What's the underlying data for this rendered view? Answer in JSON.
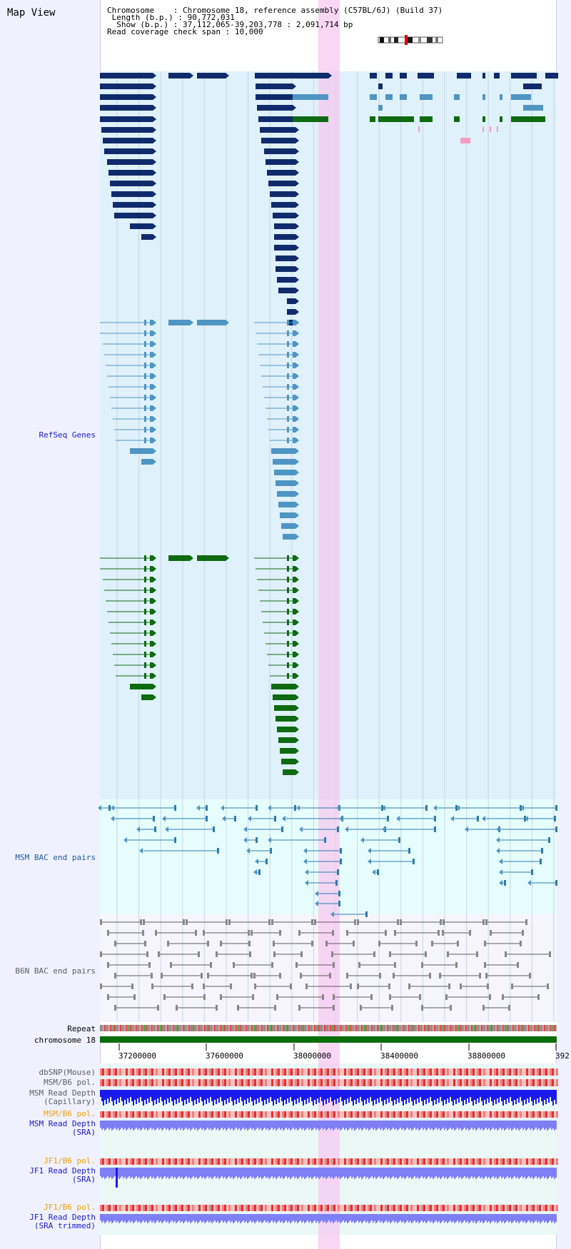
{
  "header": {
    "title": "Map View",
    "chromosome_label": "Chromosome",
    "chromosome_value": "Chromosome 18, reference assembly (C57BL/6J) (Build 37)",
    "length_label": "Length (b.p.)",
    "length_value": "90,772,031",
    "show_label": "Show (b.p.)",
    "show_value": "37,112,065-39,203,778 : 2,091,714 bp",
    "coverage_label": "Read coverage check span",
    "coverage_value": "10,000"
  },
  "tracks": {
    "refseq": "RefSeq Genes",
    "msm_bac": "MSM BAC end pairs",
    "b6n_bac": "B6N BAC end pairs",
    "repeat": "Repeat",
    "chromosome": "chromosome 18",
    "dbsnp": "dbSNP(Mouse)",
    "msm_b6_pol": "MSM/B6 pol.",
    "msm_read_depth_cap": "MSM Read Depth",
    "msm_read_depth_cap_sub": "(Capillary)",
    "msm_b6_pol_2": "MSM/B6 pol.",
    "msm_read_depth_sra": "MSM Read Depth",
    "msm_read_depth_sra_sub": "(SRA)",
    "jf1_b6_pol": "JF1/B6 pol.",
    "jf1_read_depth_sra": "JF1 Read Depth",
    "jf1_read_depth_sra_sub": "(SRA)",
    "jf1_b6_pol_2": "JF1/B6 pol.",
    "jf1_read_depth_trim": "JF1 Read Depth",
    "jf1_read_depth_trim_sub": "(SRA trimmed)"
  },
  "axis": {
    "ticks": [
      "37200000",
      "37600000",
      "38000000",
      "38400000",
      "38800000",
      "392"
    ]
  },
  "colors": {
    "refseq_bg": "#dff1fb",
    "bac_bg": "#e6fdfd",
    "b6n_bg": "#f5f5fb",
    "highlight": "#f6c8f0",
    "navy": "#0f2b6b",
    "lightblue": "#4f95c3",
    "green": "#0f6a10",
    "chrom": "#0a6e0a",
    "depth_blue": "#1a1aee",
    "depth_light": "#7f7ff5",
    "pol_red": "#e84040"
  }
}
